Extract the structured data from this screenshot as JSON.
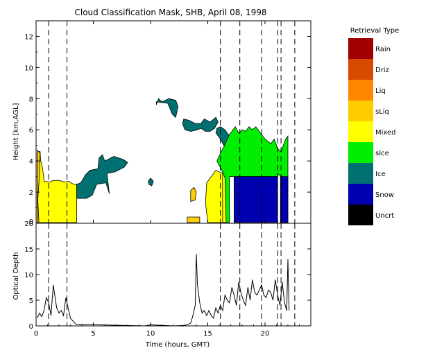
{
  "chart_data": [
    {
      "type": "heatmap",
      "title": "Cloud Classification Mask, SHB, April 08, 1998",
      "xlabel": "",
      "ylabel": "Height [km,AGL]",
      "xlim": [
        0,
        24
      ],
      "ylim": [
        0,
        13
      ],
      "yticks": [
        0,
        2,
        4,
        6,
        8,
        10,
        12
      ],
      "xticks": [
        0,
        5,
        10,
        15,
        20
      ],
      "legend": {
        "title": "Retrieval Type",
        "placement": "right",
        "categories": [
          "Rain",
          "Driz",
          "Liq",
          "sLiq",
          "Mixed",
          "sIce",
          "Ice",
          "Snow",
          "Uncrt"
        ],
        "colors": [
          "#a00000",
          "#d84a00",
          "#ff8800",
          "#ffcc00",
          "#ffff00",
          "#00ee00",
          "#007070",
          "#0000b0",
          "#000000"
        ]
      },
      "dashed_lines_x": [
        1.1,
        2.7,
        16.1,
        17.8,
        19.7,
        21.1,
        21.4,
        22.6
      ],
      "regions": [
        {
          "class": "Mixed",
          "points": [
            [
              0.1,
              0.05
            ],
            [
              0.1,
              4.6
            ],
            [
              0.35,
              4.6
            ],
            [
              0.4,
              4.0
            ],
            [
              0.5,
              3.8
            ],
            [
              0.65,
              3.1
            ],
            [
              0.7,
              2.7
            ],
            [
              1.2,
              2.65
            ],
            [
              1.5,
              2.75
            ],
            [
              2.0,
              2.75
            ],
            [
              2.5,
              2.65
            ],
            [
              2.8,
              2.7
            ],
            [
              3.3,
              2.5
            ],
            [
              3.55,
              2.5
            ],
            [
              3.55,
              0.05
            ]
          ]
        },
        {
          "class": "sLiq",
          "points": [
            [
              0.1,
              0.05
            ],
            [
              0.1,
              4.7
            ],
            [
              0.35,
              4.5
            ],
            [
              0.3,
              3.2
            ],
            [
              0.15,
              1.5
            ],
            [
              0.25,
              0.05
            ]
          ]
        },
        {
          "class": "Ice",
          "points": [
            [
              3.55,
              2.5
            ],
            [
              3.55,
              1.6
            ],
            [
              4.4,
              1.6
            ],
            [
              4.9,
              1.8
            ],
            [
              5.3,
              2.5
            ],
            [
              6.1,
              2.6
            ],
            [
              6.4,
              1.9
            ],
            [
              6.2,
              3.2
            ],
            [
              6.9,
              3.3
            ],
            [
              7.7,
              3.6
            ],
            [
              8.0,
              3.9
            ],
            [
              7.6,
              4.1
            ],
            [
              6.8,
              4.3
            ],
            [
              6.0,
              4.0
            ],
            [
              5.8,
              4.4
            ],
            [
              5.5,
              4.2
            ],
            [
              5.4,
              3.5
            ],
            [
              4.7,
              3.4
            ],
            [
              4.3,
              3.1
            ],
            [
              3.9,
              2.6
            ]
          ]
        },
        {
          "class": "Ice",
          "points": [
            [
              9.85,
              2.5
            ],
            [
              10.1,
              2.4
            ],
            [
              10.25,
              2.7
            ],
            [
              10.0,
              2.9
            ],
            [
              9.8,
              2.7
            ]
          ]
        },
        {
          "class": "Ice",
          "points": [
            [
              10.5,
              7.8
            ],
            [
              11.5,
              7.7
            ],
            [
              11.9,
              7.0
            ],
            [
              12.2,
              6.8
            ],
            [
              12.4,
              7.5
            ],
            [
              12.2,
              7.9
            ],
            [
              11.6,
              8.0
            ],
            [
              11.0,
              7.8
            ],
            [
              10.7,
              8.0
            ],
            [
              10.5,
              7.6
            ]
          ]
        },
        {
          "class": "Ice",
          "points": [
            [
              12.9,
              6.7
            ],
            [
              13.4,
              6.6
            ],
            [
              13.9,
              6.4
            ],
            [
              14.4,
              6.4
            ],
            [
              14.7,
              6.7
            ],
            [
              15.2,
              6.5
            ],
            [
              15.7,
              6.8
            ],
            [
              15.9,
              6.5
            ],
            [
              15.6,
              6.1
            ],
            [
              15.2,
              5.9
            ],
            [
              14.8,
              5.9
            ],
            [
              14.4,
              6.1
            ],
            [
              14.1,
              6.0
            ],
            [
              13.5,
              5.9
            ],
            [
              13.0,
              6.0
            ],
            [
              12.8,
              6.4
            ]
          ]
        },
        {
          "class": "Ice",
          "points": [
            [
              15.7,
              5.8
            ],
            [
              16.1,
              5.4
            ],
            [
              16.4,
              5.0
            ],
            [
              16.9,
              5.0
            ],
            [
              16.9,
              5.6
            ],
            [
              16.5,
              6.0
            ],
            [
              16.1,
              6.2
            ],
            [
              15.8,
              6.1
            ]
          ]
        },
        {
          "class": "sLiq",
          "points": [
            [
              13.5,
              1.4
            ],
            [
              13.9,
              1.5
            ],
            [
              14.0,
              2.0
            ],
            [
              13.8,
              2.3
            ],
            [
              13.5,
              2.1
            ]
          ]
        },
        {
          "class": "sLiq",
          "points": [
            [
              13.2,
              0.05
            ],
            [
              14.3,
              0.05
            ],
            [
              14.3,
              0.4
            ],
            [
              13.2,
              0.4
            ]
          ]
        },
        {
          "class": "Mixed",
          "points": [
            [
              15.0,
              0.05
            ],
            [
              16.3,
              0.05
            ],
            [
              16.3,
              3.2
            ],
            [
              15.7,
              3.4
            ],
            [
              15.3,
              3.0
            ],
            [
              14.9,
              2.6
            ],
            [
              14.8,
              1.3
            ]
          ]
        },
        {
          "class": "sIce",
          "points": [
            [
              16.3,
              0.05
            ],
            [
              16.9,
              0.05
            ],
            [
              16.9,
              3.0
            ],
            [
              17.8,
              3.0
            ],
            [
              21.1,
              3.0
            ],
            [
              21.1,
              3.2
            ],
            [
              21.35,
              3.0
            ],
            [
              21.35,
              0.05
            ],
            [
              22.0,
              0.05
            ],
            [
              22.0,
              5.6
            ],
            [
              21.8,
              5.4
            ],
            [
              21.6,
              5.0
            ],
            [
              21.4,
              4.6
            ],
            [
              21.1,
              4.8
            ],
            [
              20.8,
              5.4
            ],
            [
              20.5,
              5.1
            ],
            [
              20.2,
              5.3
            ],
            [
              19.9,
              5.5
            ],
            [
              19.6,
              5.8
            ],
            [
              19.2,
              6.2
            ],
            [
              18.9,
              6.0
            ],
            [
              18.6,
              6.2
            ],
            [
              18.3,
              5.9
            ],
            [
              18.0,
              6.0
            ],
            [
              17.7,
              5.8
            ],
            [
              17.4,
              6.2
            ],
            [
              17.1,
              5.9
            ],
            [
              16.9,
              5.7
            ],
            [
              16.4,
              4.9
            ],
            [
              16.1,
              4.5
            ],
            [
              15.8,
              4.0
            ],
            [
              16.3,
              3.3
            ]
          ]
        },
        {
          "class": "Mixed",
          "points": [
            [
              16.3,
              3.3
            ],
            [
              16.5,
              2.9
            ],
            [
              16.6,
              0.05
            ],
            [
              16.3,
              0.05
            ]
          ]
        },
        {
          "class": "Snow",
          "points": [
            [
              17.3,
              0.05
            ],
            [
              21.1,
              0.05
            ],
            [
              21.1,
              3.0
            ],
            [
              17.3,
              3.0
            ]
          ]
        },
        {
          "class": "Snow",
          "points": [
            [
              21.35,
              0.05
            ],
            [
              22.0,
              0.05
            ],
            [
              22.0,
              3.0
            ],
            [
              21.35,
              3.0
            ]
          ]
        }
      ]
    },
    {
      "type": "line",
      "title": "",
      "xlabel": "Time (hours, GMT)",
      "ylabel": "Optical Depth",
      "xlim": [
        0,
        24
      ],
      "ylim": [
        0,
        20
      ],
      "yticks": [
        0,
        5,
        10,
        15,
        20
      ],
      "xticks": [
        0,
        5,
        10,
        15,
        20
      ],
      "dashed_lines_x": [
        1.1,
        2.7,
        16.1,
        17.8,
        19.7,
        21.1,
        21.4,
        22.6
      ],
      "series": [
        {
          "x": [
            0.1,
            0.3,
            0.5,
            0.7,
            0.9,
            1.1,
            1.3,
            1.5,
            1.6,
            1.8,
            2.0,
            2.2,
            2.4,
            2.6,
            2.8,
            3.0,
            3.2,
            3.4,
            3.5,
            9.5,
            10.0,
            12.0,
            13.0,
            13.5,
            13.7,
            13.9,
            14.0,
            14.1,
            14.3,
            14.5,
            14.7,
            14.9,
            15.1,
            15.3,
            15.5,
            15.7,
            15.9,
            16.1,
            16.3,
            16.5,
            16.7,
            16.9,
            17.1,
            17.3,
            17.5,
            17.7,
            17.9,
            18.1,
            18.3,
            18.5,
            18.7,
            18.9,
            19.1,
            19.3,
            19.5,
            19.7,
            19.9,
            20.1,
            20.3,
            20.5,
            20.7,
            20.9,
            21.1,
            21.3,
            21.5,
            21.7,
            21.9,
            22.0,
            22.1
          ],
          "values": [
            1.5,
            2.5,
            1.8,
            3.0,
            5.5,
            4.5,
            2.0,
            8.0,
            6.5,
            3.5,
            2.5,
            3.0,
            2.0,
            5.5,
            3.5,
            1.5,
            1.0,
            0.5,
            0.3,
            0.0,
            0.2,
            0.0,
            0.1,
            0.5,
            2.0,
            4.0,
            14.0,
            8.0,
            4.5,
            2.5,
            3.0,
            2.0,
            3.0,
            2.0,
            1.5,
            3.5,
            2.5,
            4.0,
            3.0,
            6.0,
            5.0,
            4.5,
            7.5,
            6.0,
            4.0,
            8.5,
            6.5,
            5.0,
            4.0,
            7.5,
            5.0,
            9.0,
            6.5,
            6.0,
            7.0,
            8.0,
            6.0,
            5.5,
            7.0,
            6.5,
            5.0,
            9.0,
            6.0,
            4.0,
            8.5,
            4.5,
            3.0,
            13.0,
            3.0
          ]
        }
      ]
    }
  ],
  "xtick_labels": [
    "0",
    "5",
    "10",
    "15",
    "20"
  ]
}
